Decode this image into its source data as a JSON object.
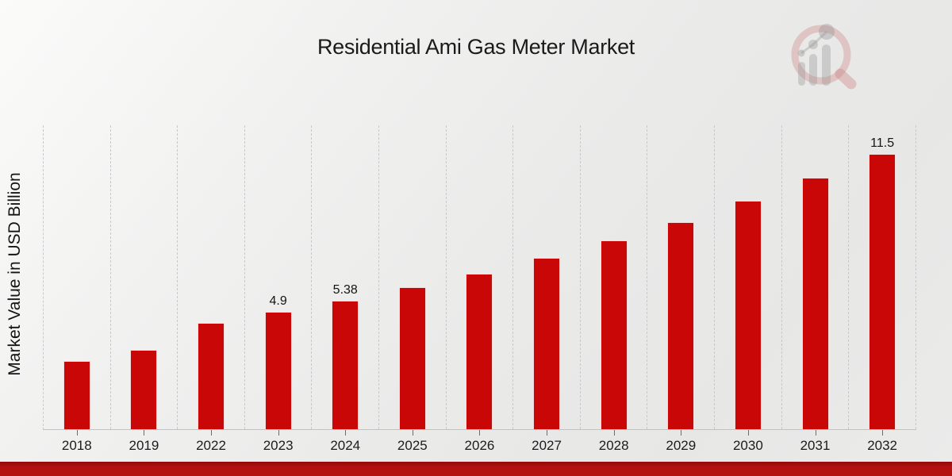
{
  "title": "Residential Ami Gas Meter Market",
  "y_axis_label": "Market Value in USD Billion",
  "watermark": "magnifier-bar-chart-logo",
  "colors": {
    "bar": "#c90707",
    "bottom_band": "#b31010",
    "grid": "#c9c9c9",
    "axis": "#c2c2c2",
    "text": "#1a1a1a",
    "logo_red": "#cb7676",
    "logo_gray": "#9a9a9a"
  },
  "chart_data": {
    "type": "bar",
    "title": "Residential Ami Gas Meter Market",
    "xlabel": "",
    "ylabel": "Market Value in USD Billion",
    "categories": [
      "2018",
      "2019",
      "2022",
      "2023",
      "2024",
      "2025",
      "2026",
      "2027",
      "2028",
      "2029",
      "2030",
      "2031",
      "2032"
    ],
    "values": [
      2.85,
      3.3,
      4.45,
      4.9,
      5.38,
      5.92,
      6.51,
      7.16,
      7.9,
      8.66,
      9.55,
      10.5,
      11.5
    ],
    "data_labels": [
      "",
      "",
      "",
      "4.9",
      "5.38",
      "",
      "",
      "",
      "",
      "",
      "",
      "",
      "11.5"
    ],
    "ylim": [
      0,
      12.7
    ],
    "grid": "vertical dashed lines between categories",
    "legend": "none",
    "bar_color": "#c90707"
  }
}
